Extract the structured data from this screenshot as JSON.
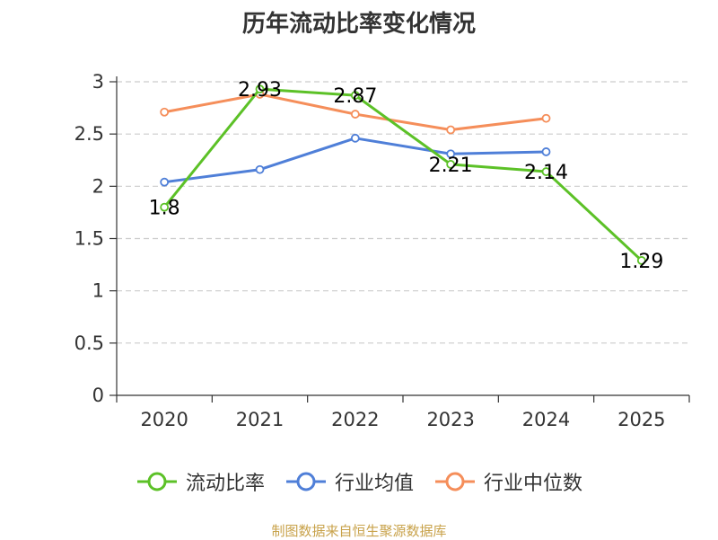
{
  "chart_data": {
    "type": "line",
    "title": "历年流动比率变化情况",
    "categories": [
      "2020",
      "2021",
      "2022",
      "2023",
      "2024",
      "2025"
    ],
    "ylim": [
      0,
      3
    ],
    "yticks": [
      "0",
      "0.5",
      "1",
      "1.5",
      "2",
      "2.5",
      "3"
    ],
    "grid": true,
    "legend_position": "bottom",
    "series": [
      {
        "name": "流动比率",
        "color": "#5cc127",
        "values": [
          1.8,
          2.93,
          2.87,
          2.21,
          2.14,
          1.29
        ],
        "labels": [
          "1.8",
          "2.93",
          "2.87",
          "2.21",
          "2.14",
          "1.29"
        ]
      },
      {
        "name": "行业均值",
        "color": "#4f7fd8",
        "values": [
          2.04,
          2.16,
          2.46,
          2.31,
          2.33,
          null
        ]
      },
      {
        "name": "行业中位数",
        "color": "#f58e5a",
        "values": [
          2.71,
          2.88,
          2.69,
          2.54,
          2.65,
          null
        ]
      }
    ]
  },
  "source_note": "制图数据来自恒生聚源数据库"
}
